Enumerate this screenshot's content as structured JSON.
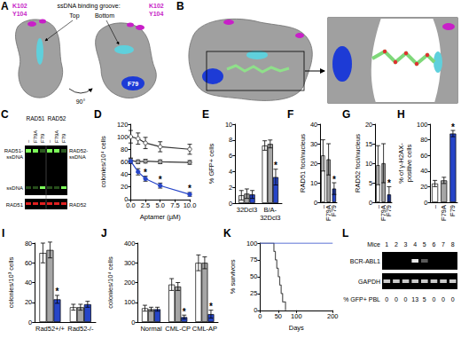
{
  "structures": [
    {
      "panel": "A",
      "residues": [
        "K102",
        "Y104"
      ],
      "groove": "ssDNA binding groove:",
      "groove_ends": [
        "Top",
        "Bottom"
      ],
      "rotation": "90°",
      "mutant": "F79"
    },
    {
      "panel": "B"
    }
  ],
  "gel": {
    "panel": "C",
    "proteins": [
      "RAD51",
      "RAD52"
    ],
    "lanes": [
      "–",
      "F79A",
      "F79"
    ],
    "left_labels": [
      "RAD51-ssDNA",
      "ssDNA",
      "RAD51"
    ],
    "right_labels": [
      "RAD52-ssDNA",
      "RAD52"
    ]
  },
  "chart_data": [
    {
      "panel": "D",
      "type": "line",
      "x_label": "Aptamer (µM)",
      "y_label": "colonies/10⁴ cells",
      "grid": false,
      "x": [
        0,
        1.25,
        2.5,
        5,
        10
      ],
      "xlim": [
        0,
        10
      ],
      "xticks": [
        {
          "value": 0,
          "label": "0.0"
        },
        2.5,
        {
          "value": 5,
          "label": "5.0"
        },
        7.5,
        {
          "value": 10,
          "label": "10.0"
        }
      ],
      "ylim": [
        0,
        120
      ],
      "yticks": [
        0,
        20,
        40,
        60,
        80,
        100,
        120
      ],
      "series": [
        {
          "color": "#ffffff",
          "marker": "circle",
          "values": [
            100,
            97,
            90,
            84,
            80
          ],
          "errors": [
            10,
            9,
            9,
            8,
            8
          ]
        },
        {
          "color": "#a6a6a6",
          "marker": "circle",
          "values": [
            62,
            60,
            61,
            60,
            59
          ],
          "errors": [
            4,
            3,
            3,
            3,
            3
          ]
        },
        {
          "color": "#2645c8",
          "marker": "circle",
          "values": [
            61,
            44,
            33,
            22,
            8
          ],
          "errors": [
            4,
            5,
            4,
            4,
            3
          ],
          "annotations": [
            null,
            null,
            "*",
            "*",
            "*"
          ]
        }
      ]
    },
    {
      "panel": "E",
      "type": "bar",
      "y_label": "% GFP+ cells",
      "grid": false,
      "categories": [
        "32Dcl3",
        "B/A-32Dcl3"
      ],
      "ylim": [
        0,
        10
      ],
      "yticks": [
        0,
        2,
        4,
        6,
        8,
        10
      ],
      "series": [
        {
          "color": "#ffffff",
          "values": [
            1.0,
            7.3
          ],
          "errors": [
            0.6,
            0.6
          ]
        },
        {
          "color": "#a6a6a6",
          "values": [
            1.2,
            7.5
          ],
          "errors": [
            0.6,
            0.5
          ]
        },
        {
          "color": "#2645c8",
          "values": [
            1.1,
            3.3
          ],
          "errors": [
            0.5,
            1.0
          ],
          "annotations": [
            null,
            "*"
          ]
        }
      ]
    },
    {
      "panel": "F",
      "type": "bar",
      "y_label": "RAD51 foci/nucleus",
      "grid": false,
      "categories": [
        "–",
        "F79A",
        "F79"
      ],
      "colors": [
        "#ffffff",
        "#a6a6a6",
        "#2645c8"
      ],
      "values": [
        24,
        22,
        7
      ],
      "errors": [
        8,
        8,
        3
      ],
      "annotations": [
        null,
        null,
        "*"
      ],
      "ylim": [
        0,
        40
      ],
      "yticks": [
        0,
        10,
        20,
        30,
        40
      ]
    },
    {
      "panel": "G",
      "type": "bar",
      "y_label": "RAD52 foci/nucleus",
      "grid": false,
      "categories": [
        "–",
        "F79A",
        "F79"
      ],
      "colors": [
        "#ffffff",
        "#a6a6a6",
        "#2645c8"
      ],
      "values": [
        9.5,
        10,
        2
      ],
      "errors": [
        5,
        5,
        2
      ],
      "annotations": [
        null,
        null,
        "*"
      ],
      "ylim": [
        0,
        20
      ],
      "yticks": [
        0,
        5,
        10,
        15,
        20
      ]
    },
    {
      "panel": "H",
      "type": "bar",
      "y_label": "% of γ-H2AX-positive cells",
      "grid": false,
      "categories": [
        "–",
        "F79A",
        "F79"
      ],
      "colors": [
        "#ffffff",
        "#a6a6a6",
        "#2645c8"
      ],
      "values": [
        24,
        28,
        88
      ],
      "errors": [
        4,
        4,
        4
      ],
      "annotations": [
        null,
        null,
        "*"
      ],
      "ylim": [
        0,
        100
      ],
      "yticks": [
        0,
        20,
        40,
        60,
        80,
        100
      ]
    },
    {
      "panel": "I",
      "type": "bar",
      "y_label": "colonies/10³ cells",
      "grid": false,
      "categories": [
        "Rad52+/+",
        "Rad52-/-"
      ],
      "ylim": [
        0,
        80
      ],
      "yticks": [
        0,
        20,
        40,
        60,
        80
      ],
      "series": [
        {
          "color": "#ffffff",
          "values": [
            70,
            15
          ],
          "errors": [
            10,
            3
          ]
        },
        {
          "color": "#a6a6a6",
          "values": [
            73,
            15
          ],
          "errors": [
            8,
            3
          ]
        },
        {
          "color": "#2645c8",
          "values": [
            23,
            18
          ],
          "errors": [
            4,
            3
          ],
          "annotations": [
            "*",
            null
          ]
        }
      ]
    },
    {
      "panel": "J",
      "type": "bar",
      "y_label": "colonies/10⁴ cells",
      "grid": false,
      "categories": [
        "Normal",
        "CML-CP",
        "CML-AP"
      ],
      "ylim": [
        0,
        400
      ],
      "yticks": [
        0,
        100,
        200,
        300,
        400
      ],
      "series": [
        {
          "color": "#ffffff",
          "values": [
            70,
            190,
            300
          ],
          "errors": [
            15,
            30,
            40
          ]
        },
        {
          "color": "#a6a6a6",
          "values": [
            65,
            180,
            300
          ],
          "errors": [
            10,
            20,
            30
          ]
        },
        {
          "color": "#2645c8",
          "values": [
            65,
            25,
            40
          ],
          "errors": [
            10,
            10,
            20
          ],
          "annotations": [
            null,
            "*",
            "*"
          ]
        }
      ]
    },
    {
      "panel": "K",
      "type": "line",
      "x_label": "Days",
      "y_label": "% survivors",
      "grid": false,
      "xlim": [
        0,
        200
      ],
      "xticks": [
        0,
        50,
        100,
        200
      ],
      "ylim": [
        0,
        100
      ],
      "yticks": [
        0,
        25,
        50,
        75,
        100
      ],
      "series": [
        {
          "color": "#555555",
          "type": "step",
          "x": [
            0,
            38,
            42,
            46,
            50,
            54,
            58,
            62,
            70
          ],
          "values": [
            100,
            87.5,
            75,
            62.5,
            50,
            37.5,
            25,
            12.5,
            0
          ]
        },
        {
          "color": "#2645c8",
          "type": "line",
          "x": [
            0,
            200
          ],
          "values": [
            100,
            100
          ]
        }
      ]
    }
  ],
  "genotyping": {
    "panel": "L",
    "row_title": "Mice",
    "mice": [
      1,
      2,
      3,
      4,
      5,
      6,
      7,
      8
    ],
    "bands": [
      "BCR-ABL1",
      "GAPDH"
    ],
    "gfp_label": "% GFP+ PBL",
    "gfp_pbl": [
      0,
      0,
      0,
      13,
      5,
      0,
      0,
      0
    ]
  }
}
